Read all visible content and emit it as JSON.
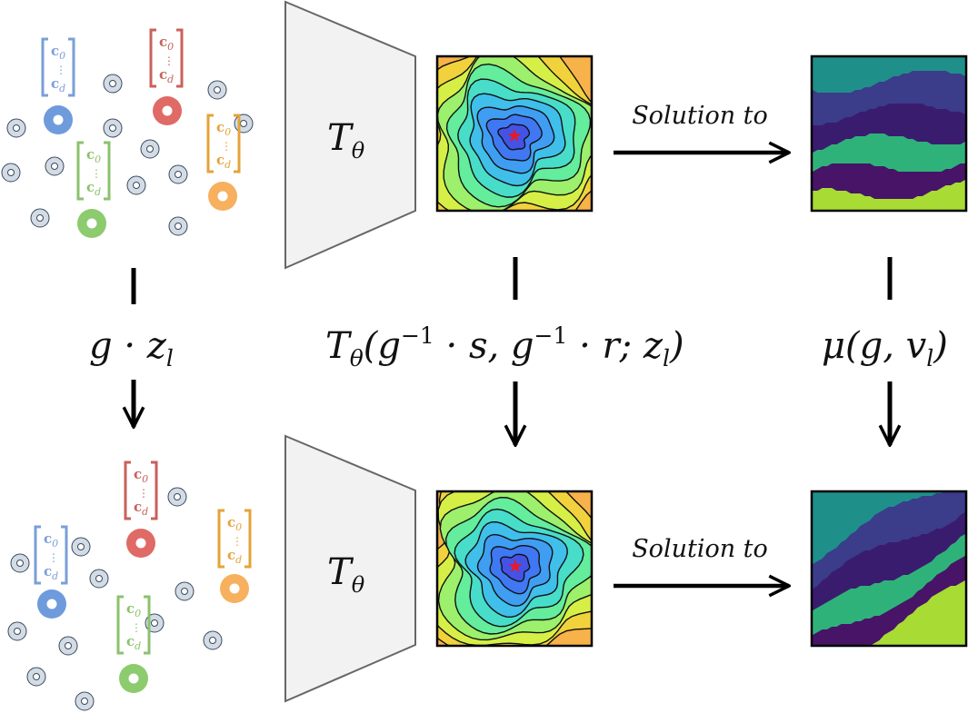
{
  "colors": {
    "blue_node": "#6e9bdc",
    "red_node": "#e06a66",
    "green_node": "#8ccb6e",
    "orange_node": "#f7b05e",
    "gray_node": "#d3dce6",
    "blue_vec": "#7a9fd8",
    "red_vec": "#c9615a",
    "green_vec": "#8bc26c",
    "orange_vec": "#e4a33a",
    "trapezoid_fill": "#f2f2f2",
    "trapezoid_stroke": "#666666"
  },
  "vector_labels": {
    "top": "c",
    "top_sub": "0",
    "bottom": "c",
    "bottom_sub": "d",
    "dots": "⋮"
  },
  "encoder": {
    "label": "T",
    "label_sub": "θ"
  },
  "edge_labels": {
    "left": "g · z",
    "left_sub": "l",
    "middle": "T",
    "middle_sub": "θ",
    "middle_rest": "(g",
    "middle_sup1": "−1",
    "middle_mid": " · s, g",
    "middle_sup2": "−1",
    "middle_tail": " · r; z",
    "middle_sub2": "l",
    "middle_close": ")",
    "right": "μ(g, v",
    "right_sub": "l",
    "right_close": ")"
  },
  "solution_label": "Solution to",
  "icons": {
    "star": "star-icon",
    "arrow": "arrow-right-icon"
  }
}
